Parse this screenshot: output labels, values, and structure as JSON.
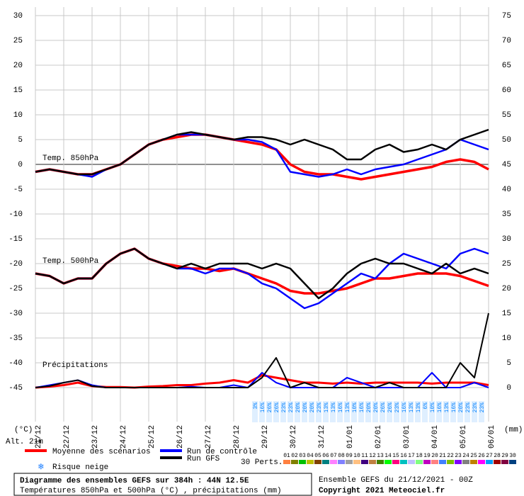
{
  "chart_data": {
    "type": "line",
    "title": "Diagramme des ensembles GEFS sur 384h : 44N 12.5E",
    "subtitle": "Températures 850hPa et 500hPa (°C) , précipitations (mm)",
    "run_info": "Ensemble GEFS du 21/12/2021 - 00Z",
    "copyright": "Copyright 2021 Meteociel.fr",
    "altitude": "Alt. 21m",
    "y_label": "(°C)",
    "y2_label": "(mm)",
    "panel_labels": [
      "Temp. 850hPa",
      "Temp. 500hPa",
      "Précipitations"
    ],
    "ylim": [
      -45,
      30
    ],
    "yticks": [
      30,
      25,
      20,
      15,
      10,
      5,
      0,
      -5,
      -10,
      -15,
      -20,
      -25,
      -30,
      -35,
      -40,
      -45
    ],
    "y2lim": [
      0,
      75
    ],
    "y2ticks": [
      75,
      70,
      65,
      60,
      55,
      50,
      45,
      40,
      35,
      30,
      25,
      20,
      15,
      10,
      5,
      0
    ],
    "xlim": [
      0,
      384
    ],
    "xticks": [
      {
        "value": 0,
        "label": "21/12"
      },
      {
        "value": 24,
        "label": "22/12"
      },
      {
        "value": 48,
        "label": "23/12"
      },
      {
        "value": 72,
        "label": "24/12"
      },
      {
        "value": 96,
        "label": "25/12"
      },
      {
        "value": 120,
        "label": "26/12"
      },
      {
        "value": 144,
        "label": "27/12"
      },
      {
        "value": 168,
        "label": "28/12"
      },
      {
        "value": 192,
        "label": "29/12"
      },
      {
        "value": 216,
        "label": "30/12"
      },
      {
        "value": 240,
        "label": "31/12"
      },
      {
        "value": 264,
        "label": "01/01"
      },
      {
        "value": 288,
        "label": "02/01"
      },
      {
        "value": 312,
        "label": "03/01"
      },
      {
        "value": 336,
        "label": "04/01"
      },
      {
        "value": 360,
        "label": "05/01"
      },
      {
        "value": 384,
        "label": "06/01"
      }
    ],
    "grid": true,
    "x": [
      0,
      12,
      24,
      36,
      48,
      60,
      72,
      84,
      96,
      108,
      120,
      132,
      144,
      156,
      168,
      180,
      192,
      204,
      216,
      228,
      240,
      252,
      264,
      276,
      288,
      300,
      312,
      324,
      336,
      348,
      360,
      372,
      384
    ],
    "series": [
      {
        "name": "Moyenne des scénarios",
        "color": "#ff0000",
        "t850": [
          -1.5,
          -1,
          -1.5,
          -2,
          -2,
          -1,
          0,
          2,
          4,
          5,
          5.5,
          6,
          6,
          5.5,
          5,
          4.5,
          4,
          3,
          0,
          -1.5,
          -2,
          -2,
          -2.5,
          -3,
          -2.5,
          -2,
          -1.5,
          -1,
          -0.5,
          0.5,
          1,
          0.5,
          -1
        ],
        "t500": [
          -22,
          -22.5,
          -24,
          -23,
          -23,
          -20,
          -18,
          -17,
          -19,
          -20,
          -20.5,
          -21,
          -21,
          -21.5,
          -21,
          -22,
          -23,
          -24,
          -25.5,
          -26,
          -26,
          -25.5,
          -25,
          -24,
          -23,
          -23,
          -22.5,
          -22,
          -22,
          -22,
          -22.5,
          -23.5,
          -24.5
        ],
        "precip": [
          0,
          0.2,
          0.5,
          1,
          0.3,
          0.1,
          0.1,
          0,
          0.2,
          0.3,
          0.5,
          0.5,
          0.8,
          1,
          1.5,
          1,
          2.5,
          2,
          1.5,
          1,
          1,
          0.8,
          1,
          0.8,
          1,
          1,
          1,
          1,
          0.8,
          1,
          1,
          1,
          0.5
        ]
      },
      {
        "name": "Run de contrôle",
        "color": "#0000ff",
        "t850": [
          -1.5,
          -1,
          -1.5,
          -2,
          -2.5,
          -1,
          0,
          2,
          4,
          5,
          6,
          6,
          6,
          5.5,
          5,
          5,
          4.5,
          3,
          -1.5,
          -2,
          -2.5,
          -2,
          -1,
          -2,
          -1,
          -0.5,
          0,
          1,
          2,
          3,
          5,
          4,
          3
        ],
        "t500": [
          -22,
          -22.5,
          -24,
          -23,
          -23,
          -20,
          -18,
          -17,
          -19,
          -20,
          -21,
          -21,
          -22,
          -21,
          -21,
          -22,
          -24,
          -25,
          -27,
          -29,
          -28,
          -26,
          -24,
          -22,
          -23,
          -20,
          -18,
          -19,
          -20,
          -21,
          -18,
          -17,
          -18
        ],
        "precip": [
          0,
          0.5,
          1,
          1.5,
          0.5,
          0,
          0,
          0,
          0,
          0,
          0,
          0.2,
          0,
          0,
          0.5,
          0,
          3,
          1,
          0,
          0,
          0,
          0,
          2,
          1,
          0,
          0,
          0,
          0,
          3,
          0,
          0,
          1,
          0
        ]
      },
      {
        "name": "Run GFS",
        "color": "#000000",
        "t850": [
          -1.5,
          -1,
          -1.5,
          -2,
          -2,
          -1,
          0,
          2,
          4,
          5,
          6,
          6.5,
          6,
          5.5,
          5,
          5.5,
          5.5,
          5,
          4,
          5,
          4,
          3,
          1,
          1,
          3,
          4,
          2.5,
          3,
          4,
          3,
          5,
          6,
          7
        ],
        "t500": [
          -22,
          -22.5,
          -24,
          -23,
          -23,
          -20,
          -18,
          -17,
          -19,
          -20,
          -21,
          -20,
          -21,
          -20,
          -20,
          -20,
          -21,
          -20,
          -21,
          -24,
          -27,
          -25,
          -22,
          -20,
          -19,
          -20,
          -20,
          -21,
          -22,
          -20,
          -22,
          -21,
          -22
        ],
        "precip": [
          0,
          0.3,
          1,
          1.5,
          0.3,
          0,
          0,
          0,
          0,
          0,
          0,
          0,
          0,
          0,
          0,
          0,
          2,
          6,
          0,
          1,
          0,
          0,
          0,
          0,
          0,
          1,
          0,
          0,
          0,
          0,
          5,
          2,
          15
        ]
      }
    ],
    "snow_risk": {
      "name": "Risque neige",
      "color": "#0080ff",
      "x": [
        186,
        192,
        198,
        204,
        210,
        216,
        222,
        228,
        234,
        240,
        246,
        252,
        258,
        264,
        270,
        276,
        282,
        288,
        294,
        300,
        306,
        312,
        318,
        324,
        330,
        336,
        342,
        348,
        354,
        360,
        366,
        372,
        378
      ],
      "values": [
        3,
        16,
        26,
        26,
        23,
        23,
        20,
        20,
        20,
        23,
        13,
        13,
        16,
        13,
        10,
        16,
        20,
        20,
        26,
        26,
        23,
        16,
        13,
        13,
        6,
        10,
        16,
        13,
        16,
        20,
        23,
        23,
        23
      ],
      "value_labels": [
        "3%",
        "16%",
        "26%",
        "26%",
        "23%",
        "23%",
        "20%",
        "20%",
        "20%",
        "23%",
        "13%",
        "13%",
        "16%",
        "13%",
        "10%",
        "16%",
        "20%",
        "20%",
        "26%",
        "26%",
        "23%",
        "16%",
        "13%",
        "13%",
        "6%",
        "10%",
        "16%",
        "13%",
        "16%",
        "20%",
        "23%",
        "23%",
        "23%"
      ]
    },
    "perturbations": {
      "label": "30 Perts.",
      "names": [
        "01",
        "02",
        "03",
        "04",
        "05",
        "06",
        "07",
        "08",
        "09",
        "10",
        "11",
        "12",
        "13",
        "14",
        "15",
        "16",
        "17",
        "18",
        "19",
        "20",
        "21",
        "22",
        "23",
        "24",
        "25",
        "26",
        "27",
        "28",
        "29",
        "30"
      ],
      "colors": [
        "#ff8040",
        "#808000",
        "#00c000",
        "#c0c000",
        "#804000",
        "#008080",
        "#ff80ff",
        "#8080ff",
        "#a0a0a0",
        "#ffc080",
        "#400080",
        "#c08040",
        "#408000",
        "#00ff00",
        "#ff0080",
        "#00c0c0",
        "#c0c0ff",
        "#80ff80",
        "#c000c0",
        "#ff8080",
        "#4080ff",
        "#80c000",
        "#8000ff",
        "#808080",
        "#c08000",
        "#ff00ff",
        "#00a0ff",
        "#a00000",
        "#800040",
        "#004080"
      ]
    }
  }
}
